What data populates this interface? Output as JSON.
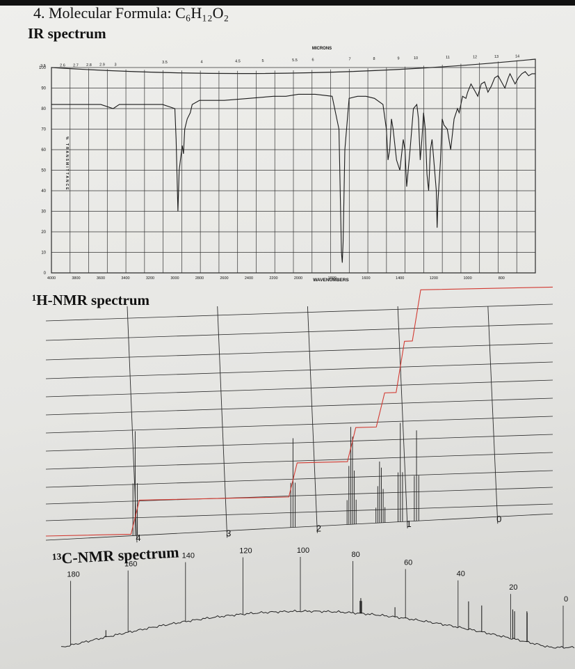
{
  "titles": {
    "question": "4. Molecular Formula: C₆H₁₂O₂",
    "ir": "IR spectrum",
    "h_nmr": "¹H-NMR spectrum",
    "c_nmr": "¹³C-NMR spectrum"
  },
  "chart_data": [
    {
      "type": "line",
      "id": "ir",
      "xlabel": "WAVENUMBERS",
      "top_axis_label": "MICRONS",
      "ylabel": "% TRANSMITTANCE",
      "x_tick_labels": [
        "4000",
        "3800",
        "3600",
        "3400",
        "3200",
        "3000",
        "2800",
        "2600",
        "2400",
        "2200",
        "2000",
        "1800",
        "1600",
        "1400",
        "1200",
        "1000",
        "800"
      ],
      "micron_tick_labels": [
        "2.5",
        "2.6",
        "2.7",
        "2.8",
        "2.9",
        "3",
        "3.5",
        "4",
        "4.5",
        "5",
        "5.5",
        "6",
        "7",
        "8",
        "9",
        "10",
        "11",
        "12",
        "13",
        "14"
      ],
      "y_tick_labels": [
        "100",
        "90",
        "80",
        "70",
        "60",
        "50",
        "40",
        "30",
        "20",
        "10",
        "0"
      ],
      "xlim": [
        4000,
        600
      ],
      "ylim": [
        0,
        100
      ],
      "grid": true,
      "series": [
        {
          "x": [
            4000,
            3700,
            3600,
            3500,
            3450,
            3300,
            3100,
            3000,
            2990,
            2975,
            2965,
            2955,
            2940,
            2930,
            2920,
            2900,
            2875,
            2860,
            2800,
            2600,
            2400,
            2200,
            2100,
            2000,
            1900,
            1800,
            1760,
            1745,
            1740,
            1735,
            1725,
            1700,
            1650,
            1600,
            1550,
            1500,
            1480,
            1470,
            1460,
            1450,
            1440,
            1420,
            1400,
            1380,
            1370,
            1360,
            1340,
            1320,
            1300,
            1290,
            1280,
            1270,
            1260,
            1250,
            1240,
            1230,
            1220,
            1210,
            1200,
            1185,
            1180,
            1175,
            1160,
            1150,
            1140,
            1120,
            1100,
            1080,
            1060,
            1050,
            1030,
            1010,
            1000,
            980,
            960,
            940,
            920,
            900,
            880,
            860,
            840,
            820,
            800,
            780,
            760,
            750,
            720,
            700,
            680,
            660,
            640,
            620,
            600
          ],
          "y": [
            82,
            82,
            82,
            80,
            82,
            82,
            82,
            80,
            65,
            30,
            50,
            55,
            62,
            58,
            70,
            75,
            78,
            82,
            84,
            84,
            85,
            86,
            86,
            87,
            87,
            86,
            70,
            10,
            5,
            15,
            60,
            85,
            86,
            86,
            85,
            82,
            70,
            55,
            60,
            75,
            70,
            55,
            50,
            65,
            60,
            42,
            60,
            80,
            82,
            75,
            55,
            65,
            78,
            70,
            48,
            40,
            60,
            65,
            55,
            40,
            22,
            35,
            55,
            75,
            72,
            70,
            60,
            75,
            80,
            78,
            86,
            85,
            88,
            92,
            89,
            86,
            92,
            93,
            88,
            91,
            95,
            96,
            93,
            90,
            95,
            97,
            92,
            95,
            97,
            98,
            96,
            97,
            97
          ]
        }
      ]
    },
    {
      "type": "line",
      "id": "h_nmr",
      "xlabel": "",
      "x_tick_labels": [
        "4",
        "3",
        "2",
        "1",
        "0"
      ],
      "xlim": [
        4.95,
        -0.55
      ],
      "grid": true,
      "peaks": [
        {
          "shift": 4.02,
          "multiplicity": "triplet",
          "integration": 2
        },
        {
          "shift": 2.27,
          "multiplicity": "triplet",
          "integration": 2
        },
        {
          "shift": 1.62,
          "multiplicity": "multiplet",
          "integration": 2
        },
        {
          "shift": 1.3,
          "multiplicity": "multiplet",
          "integration": 2
        },
        {
          "shift": 1.08,
          "multiplicity": "triplet",
          "integration": 3
        },
        {
          "shift": 0.9,
          "multiplicity": "triplet",
          "integration": 3
        }
      ]
    },
    {
      "type": "bar",
      "id": "c_nmr",
      "xlabel": "",
      "x_tick_labels": [
        "180",
        "160",
        "140",
        "120",
        "100",
        "80",
        "60",
        "40",
        "20",
        "0"
      ],
      "xlim": [
        185,
        -2
      ],
      "grid": true,
      "peaks_ppm": [
        174,
        77.3,
        77.0,
        76.7,
        64,
        36,
        31,
        19.2,
        18.5,
        13.8,
        13.7
      ]
    }
  ]
}
